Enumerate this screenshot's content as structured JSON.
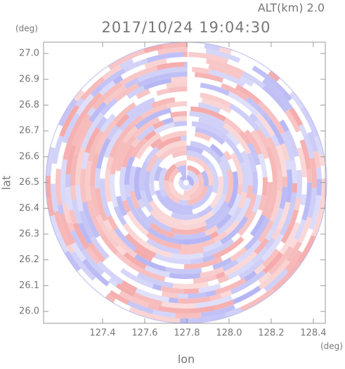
{
  "chart_data": {
    "type": "radar-image",
    "title": "2017/10/24 19:04:30",
    "subtitle": "ALT(km) 2.0",
    "xlabel": "lon",
    "ylabel": "lat",
    "x_unit": "(deg)",
    "y_unit": "(deg)",
    "xlim": [
      127.12,
      128.457
    ],
    "ylim": [
      25.954,
      27.044
    ],
    "xticks": [
      127.4,
      127.6,
      127.8,
      {
        "value": 128,
        "label": "128.0"
      },
      128.2,
      128.4
    ],
    "yticks": [
      {
        "value": 26,
        "label": "26.0"
      },
      26.1,
      26.2,
      26.3,
      26.4,
      26.5,
      26.6,
      26.7,
      26.8,
      26.9,
      {
        "value": 27,
        "label": "27.0"
      }
    ]
  }
}
